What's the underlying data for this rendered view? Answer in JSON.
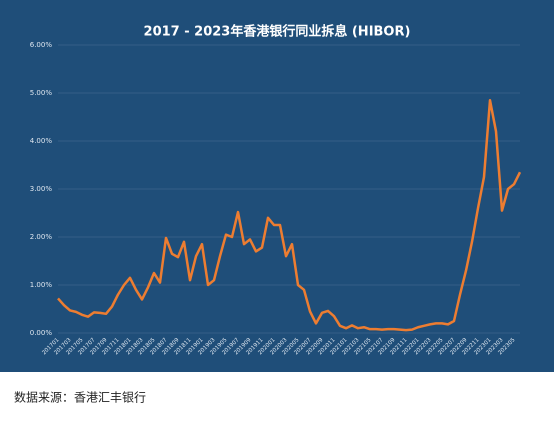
{
  "chart_data": {
    "type": "line",
    "title": "2017 - 2023年香港银行同业拆息 (HIBOR)",
    "source": "数据来源：香港汇丰银行",
    "categories": [
      "201701",
      null,
      "201703",
      null,
      "201705",
      null,
      "201707",
      null,
      "201709",
      null,
      "201711",
      null,
      "201801",
      null,
      "201803",
      null,
      "201805",
      null,
      "201807",
      null,
      "201809",
      null,
      "201811",
      null,
      "201901",
      null,
      "201903",
      null,
      "201905",
      null,
      "201907",
      null,
      "201909",
      null,
      "201911",
      null,
      "202001",
      null,
      "202003",
      null,
      "202005",
      null,
      "202007",
      null,
      "202009",
      null,
      "202011",
      null,
      "202101",
      null,
      "202103",
      null,
      "202105",
      null,
      "202107",
      null,
      "202109",
      null,
      "202111",
      null,
      "202201",
      null,
      "202203",
      null,
      "202205",
      null,
      "202207",
      null,
      "202209",
      null,
      "202211",
      null,
      "202301",
      null,
      "202303",
      null,
      "202305",
      null
    ],
    "series": [
      {
        "name": "HIBOR",
        "color": "#ed7d31",
        "values": [
          0.72,
          0.58,
          0.47,
          0.44,
          0.38,
          0.34,
          0.43,
          0.42,
          0.4,
          0.55,
          0.8,
          1.0,
          1.15,
          0.9,
          0.7,
          0.95,
          1.25,
          1.05,
          1.98,
          1.65,
          1.58,
          1.9,
          1.1,
          1.6,
          1.85,
          1.0,
          1.1,
          1.6,
          2.05,
          2.0,
          2.52,
          1.85,
          1.95,
          1.7,
          1.78,
          2.4,
          2.25,
          2.25,
          1.6,
          1.85,
          1.0,
          0.9,
          0.45,
          0.2,
          0.42,
          0.46,
          0.35,
          0.15,
          0.1,
          0.16,
          0.1,
          0.12,
          0.08,
          0.08,
          0.07,
          0.08,
          0.08,
          0.07,
          0.06,
          0.07,
          0.12,
          0.15,
          0.18,
          0.2,
          0.2,
          0.18,
          0.25,
          0.8,
          1.3,
          1.9,
          2.6,
          3.25,
          4.85,
          4.2,
          2.55,
          3.0,
          3.1,
          3.35
        ]
      }
    ],
    "ylim": [
      0,
      6
    ],
    "yticks": [
      {
        "value": 0,
        "label": "0.00%"
      },
      {
        "value": 1,
        "label": "1.00%"
      },
      {
        "value": 2,
        "label": "2.00%"
      },
      {
        "value": 3,
        "label": "3.00%"
      },
      {
        "value": 4,
        "label": "4.00%"
      },
      {
        "value": 5,
        "label": "5.00%"
      },
      {
        "value": 6,
        "label": "6.00%"
      }
    ],
    "grid": true
  }
}
